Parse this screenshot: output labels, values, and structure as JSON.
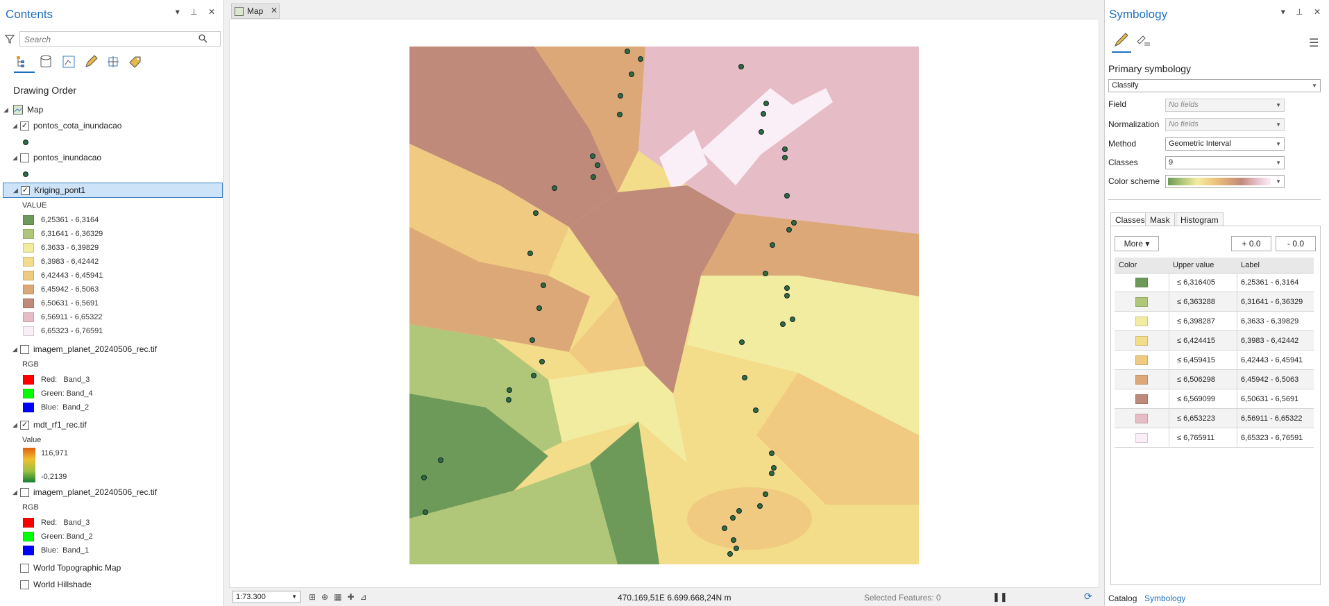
{
  "contents": {
    "title": "Contents",
    "search_placeholder": "Search",
    "section": "Drawing Order",
    "map_name": "Map",
    "layers": {
      "pontos_cota": "pontos_cota_inundacao",
      "pontos_inund": "pontos_inundacao",
      "kriging": "Kriging_pont1",
      "kriging_field": "VALUE",
      "kriging_classes": [
        {
          "label": "6,25361 - 6,3164",
          "color": "#6d9a58"
        },
        {
          "label": "6,31641 - 6,36329",
          "color": "#b0c77a"
        },
        {
          "label": "6,3633 - 6,39829",
          "color": "#f2eca0"
        },
        {
          "label": "6,3983 - 6,42442",
          "color": "#f3dc8a"
        },
        {
          "label": "6,42443 - 6,45941",
          "color": "#f0ca80"
        },
        {
          "label": "6,45942 - 6,5063",
          "color": "#dca878"
        },
        {
          "label": "6,50631 - 6,5691",
          "color": "#c08a7a"
        },
        {
          "label": "6,56911 - 6,65322",
          "color": "#e6bcc7"
        },
        {
          "label": "6,65323 - 6,76591",
          "color": "#fbeff7"
        }
      ],
      "img1": "imagem_planet_20240506_rec.tif",
      "img1_rgb": "RGB",
      "img1_bands": [
        {
          "label": "Red:   Band_3",
          "color": "#ff0000"
        },
        {
          "label": "Green: Band_4",
          "color": "#00ff00"
        },
        {
          "label": "Blue:  Band_2",
          "color": "#0000ff"
        }
      ],
      "mdt": "mdt_rf1_rec.tif",
      "mdt_field": "Value",
      "mdt_max": "116,971",
      "mdt_min": "-0,2139",
      "img2": "imagem_planet_20240506_rec.tif",
      "img2_rgb": "RGB",
      "img2_bands": [
        {
          "label": "Red:   Band_3",
          "color": "#ff0000"
        },
        {
          "label": "Green: Band_2",
          "color": "#00ff00"
        },
        {
          "label": "Blue:  Band_1",
          "color": "#0000ff"
        }
      ],
      "topo": "World Topographic Map",
      "hillshade": "World Hillshade"
    }
  },
  "map": {
    "tab": "Map",
    "scale": "1:73.300",
    "coords": "470.169,51E 6.699.668,24N m",
    "selected": "Selected Features: 0"
  },
  "symbology": {
    "title": "Symbology",
    "primary": "Primary symbology",
    "renderer": "Classify",
    "field_label": "Field",
    "field_value": "No fields",
    "norm_label": "Normalization",
    "norm_value": "No fields",
    "method_label": "Method",
    "method_value": "Geometric Interval",
    "classes_label": "Classes",
    "classes_value": "9",
    "scheme_label": "Color scheme",
    "tabs": [
      "Classes",
      "Mask",
      "Histogram"
    ],
    "more": "More",
    "plus": "+ 0.0",
    "minus": "- 0.0",
    "headers": [
      "Color",
      "Upper value",
      "Label"
    ],
    "rows": [
      {
        "color": "#6d9a58",
        "upper": "≤  6,316405",
        "label": "6,25361 - 6,3164"
      },
      {
        "color": "#b0c77a",
        "upper": "≤  6,363288",
        "label": "6,31641 - 6,36329"
      },
      {
        "color": "#f2eca0",
        "upper": "≤  6,398287",
        "label": "6,3633 - 6,39829"
      },
      {
        "color": "#f3dc8a",
        "upper": "≤  6,424415",
        "label": "6,3983 - 6,42442"
      },
      {
        "color": "#f0ca80",
        "upper": "≤  6,459415",
        "label": "6,42443 - 6,45941"
      },
      {
        "color": "#dca878",
        "upper": "≤  6,506298",
        "label": "6,45942 - 6,5063"
      },
      {
        "color": "#c08a7a",
        "upper": "≤  6,569099",
        "label": "6,50631 - 6,5691"
      },
      {
        "color": "#e6bcc7",
        "upper": "≤  6,653223",
        "label": "6,56911 - 6,65322"
      },
      {
        "color": "#fbeff7",
        "upper": "≤  6,765911",
        "label": "6,65323 - 6,76591"
      }
    ],
    "bottom_tabs": [
      "Catalog",
      "Symbology"
    ]
  }
}
